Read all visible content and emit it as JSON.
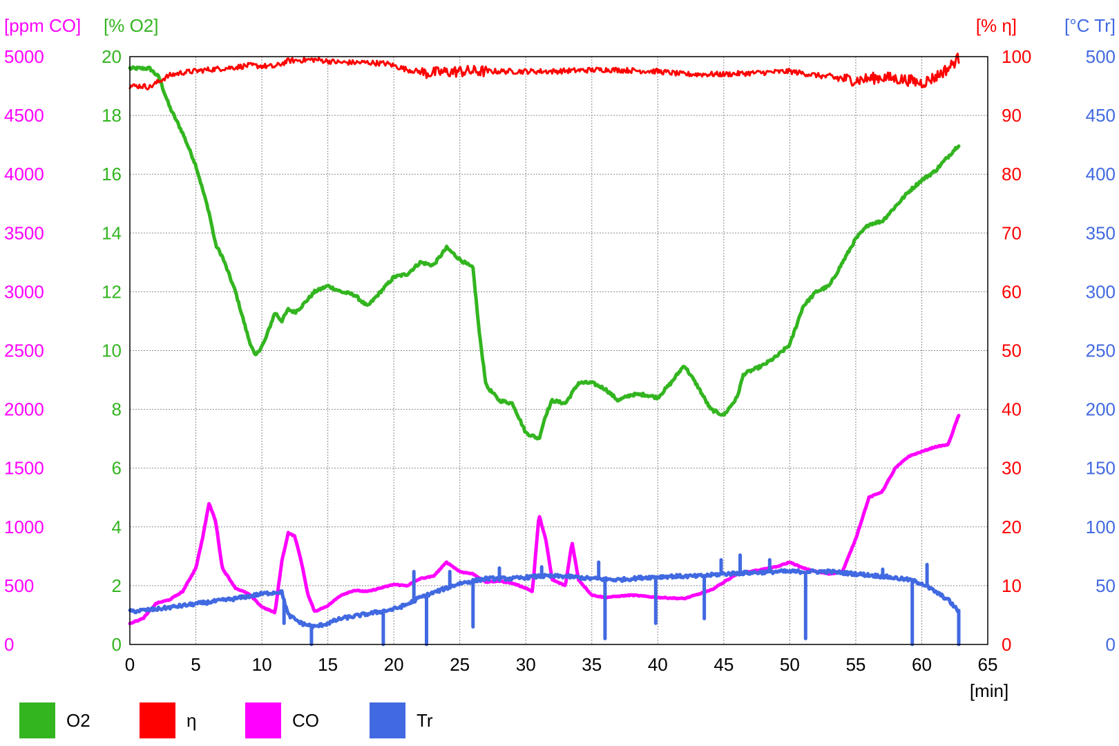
{
  "chart_data": {
    "type": "line",
    "xlabel": "[min]",
    "xlim": [
      0,
      65
    ],
    "x_ticks": [
      "0",
      "5",
      "10",
      "15",
      "20",
      "25",
      "30",
      "35",
      "40",
      "45",
      "50",
      "55",
      "60",
      "65"
    ],
    "grid": true,
    "legend_placement": "bottom-left",
    "axes": {
      "co": {
        "label": "[ppm CO]",
        "color": "#ff00ff",
        "side": "left-outer",
        "range": [
          0,
          5000
        ],
        "ticks": [
          "0",
          "500",
          "1000",
          "1500",
          "2000",
          "2500",
          "3000",
          "3500",
          "4000",
          "4500",
          "5000"
        ]
      },
      "o2": {
        "label": "[% O2]",
        "color": "#33b520",
        "side": "left-inner",
        "range": [
          0,
          20
        ],
        "ticks": [
          "0",
          "2",
          "4",
          "6",
          "8",
          "10",
          "12",
          "14",
          "16",
          "18",
          "20"
        ]
      },
      "eta": {
        "label": "[% η]",
        "color": "#ff0000",
        "side": "right-inner",
        "range": [
          0,
          100
        ],
        "ticks": [
          "0",
          "10",
          "20",
          "30",
          "40",
          "50",
          "60",
          "70",
          "80",
          "90",
          "100"
        ]
      },
      "tr": {
        "label": "[°C Tr]",
        "color": "#4169e1",
        "side": "right-outer",
        "range": [
          0,
          500
        ],
        "ticks": [
          "0",
          "50",
          "100",
          "150",
          "200",
          "250",
          "300",
          "350",
          "400",
          "450",
          "500"
        ]
      }
    },
    "series": [
      {
        "name": "O2",
        "axis": "o2",
        "color": "#33b520",
        "noise": 0.05,
        "points": [
          [
            0,
            19.6
          ],
          [
            1,
            19.6
          ],
          [
            1.5,
            19.6
          ],
          [
            2.2,
            19.3
          ],
          [
            3,
            18.3
          ],
          [
            4,
            17.4
          ],
          [
            5,
            16.3
          ],
          [
            6,
            14.7
          ],
          [
            6.5,
            13.6
          ],
          [
            7,
            13.2
          ],
          [
            8,
            12.0
          ],
          [
            9,
            10.4
          ],
          [
            9.5,
            9.8
          ],
          [
            10.2,
            10.3
          ],
          [
            11,
            11.3
          ],
          [
            11.5,
            11.0
          ],
          [
            12,
            11.4
          ],
          [
            12.5,
            11.3
          ],
          [
            13,
            11.5
          ],
          [
            14,
            12.0
          ],
          [
            15,
            12.2
          ],
          [
            16,
            12.0
          ],
          [
            17,
            11.9
          ],
          [
            18,
            11.5
          ],
          [
            19,
            12.0
          ],
          [
            20,
            12.5
          ],
          [
            21,
            12.6
          ],
          [
            22,
            13.0
          ],
          [
            23,
            12.9
          ],
          [
            24,
            13.5
          ],
          [
            25,
            13.1
          ],
          [
            26,
            12.8
          ],
          [
            26.5,
            10.5
          ],
          [
            27,
            8.8
          ],
          [
            28,
            8.3
          ],
          [
            29,
            8.2
          ],
          [
            30,
            7.2
          ],
          [
            31,
            7.0
          ],
          [
            31.5,
            7.8
          ],
          [
            32,
            8.3
          ],
          [
            33,
            8.2
          ],
          [
            34,
            8.9
          ],
          [
            35,
            8.9
          ],
          [
            36,
            8.7
          ],
          [
            37,
            8.3
          ],
          [
            38,
            8.5
          ],
          [
            39,
            8.5
          ],
          [
            40,
            8.4
          ],
          [
            41,
            8.9
          ],
          [
            42,
            9.5
          ],
          [
            43,
            8.8
          ],
          [
            44,
            8.0
          ],
          [
            45,
            7.8
          ],
          [
            46,
            8.4
          ],
          [
            46.5,
            9.2
          ],
          [
            47,
            9.3
          ],
          [
            48,
            9.5
          ],
          [
            49,
            9.8
          ],
          [
            50,
            10.2
          ],
          [
            51,
            11.5
          ],
          [
            52,
            12.0
          ],
          [
            53,
            12.2
          ],
          [
            54,
            13.0
          ],
          [
            55,
            13.8
          ],
          [
            56,
            14.3
          ],
          [
            57,
            14.4
          ],
          [
            58,
            14.9
          ],
          [
            59,
            15.4
          ],
          [
            60,
            15.8
          ],
          [
            61,
            16.1
          ],
          [
            62,
            16.6
          ],
          [
            62.8,
            17.0
          ]
        ]
      },
      {
        "name": "η",
        "axis": "eta",
        "color": "#ff0000",
        "noise": 0.45,
        "points": [
          [
            0,
            95
          ],
          [
            1,
            95
          ],
          [
            1.5,
            94.8
          ],
          [
            2,
            95.5
          ],
          [
            2.5,
            96.2
          ],
          [
            3,
            96.8
          ],
          [
            4,
            97.3
          ],
          [
            6,
            97.8
          ],
          [
            8,
            98.2
          ],
          [
            9,
            98.5
          ],
          [
            11,
            98.3
          ],
          [
            12,
            99.3
          ],
          [
            14,
            99.5
          ],
          [
            16,
            99.0
          ],
          [
            18,
            99.0
          ],
          [
            19.5,
            98.8
          ],
          [
            21,
            97.8
          ],
          [
            22.5,
            97.2
          ],
          [
            25,
            97.5
          ],
          [
            28,
            97.5
          ],
          [
            32,
            97.5
          ],
          [
            36,
            97.8
          ],
          [
            40,
            97.5
          ],
          [
            42,
            97.0
          ],
          [
            45,
            97.0
          ],
          [
            50,
            97.5
          ],
          [
            53,
            96.5
          ],
          [
            55,
            96.0
          ],
          [
            57,
            96.5
          ],
          [
            59,
            96.0
          ],
          [
            60,
            95.5
          ],
          [
            61,
            96.5
          ],
          [
            62,
            98.0
          ],
          [
            62.8,
            99.8
          ]
        ]
      },
      {
        "name": "CO",
        "axis": "co",
        "color": "#ff00ff",
        "noise": 4,
        "points": [
          [
            0,
            180
          ],
          [
            1,
            220
          ],
          [
            2,
            350
          ],
          [
            3,
            380
          ],
          [
            4,
            450
          ],
          [
            5,
            650
          ],
          [
            5.5,
            900
          ],
          [
            6,
            1200
          ],
          [
            6.5,
            1050
          ],
          [
            7,
            650
          ],
          [
            8,
            480
          ],
          [
            9,
            430
          ],
          [
            10,
            320
          ],
          [
            11,
            270
          ],
          [
            11.5,
            700
          ],
          [
            12,
            950
          ],
          [
            12.5,
            920
          ],
          [
            13,
            700
          ],
          [
            13.5,
            420
          ],
          [
            14,
            280
          ],
          [
            15,
            330
          ],
          [
            16,
            420
          ],
          [
            17,
            460
          ],
          [
            18,
            450
          ],
          [
            19,
            480
          ],
          [
            20,
            510
          ],
          [
            21,
            500
          ],
          [
            22,
            560
          ],
          [
            23,
            580
          ],
          [
            24,
            700
          ],
          [
            25,
            620
          ],
          [
            26,
            600
          ],
          [
            27,
            530
          ],
          [
            28,
            540
          ],
          [
            29,
            520
          ],
          [
            30,
            480
          ],
          [
            30.5,
            450
          ],
          [
            31,
            1100
          ],
          [
            31.5,
            900
          ],
          [
            32,
            550
          ],
          [
            33,
            500
          ],
          [
            33.5,
            870
          ],
          [
            34,
            550
          ],
          [
            35,
            420
          ],
          [
            36,
            400
          ],
          [
            38,
            420
          ],
          [
            40,
            400
          ],
          [
            42,
            390
          ],
          [
            44,
            460
          ],
          [
            46,
            600
          ],
          [
            48,
            640
          ],
          [
            49,
            660
          ],
          [
            50,
            700
          ],
          [
            51,
            650
          ],
          [
            52,
            620
          ],
          [
            53,
            600
          ],
          [
            54,
            620
          ],
          [
            55,
            900
          ],
          [
            56,
            1250
          ],
          [
            57,
            1300
          ],
          [
            58,
            1500
          ],
          [
            59,
            1600
          ],
          [
            60,
            1640
          ],
          [
            61,
            1680
          ],
          [
            62,
            1700
          ],
          [
            62.8,
            1950
          ]
        ]
      },
      {
        "name": "Tr",
        "axis": "tr",
        "color": "#4169e1",
        "noise": 1.5,
        "points": [
          [
            0,
            28
          ],
          [
            2,
            30
          ],
          [
            4,
            33
          ],
          [
            6,
            36
          ],
          [
            8,
            39
          ],
          [
            10,
            43
          ],
          [
            11.5,
            45
          ],
          [
            12,
            25
          ],
          [
            13,
            18
          ],
          [
            14,
            15
          ],
          [
            15,
            18
          ],
          [
            16,
            22
          ],
          [
            17,
            24
          ],
          [
            18,
            26
          ],
          [
            19,
            28
          ],
          [
            20,
            30
          ],
          [
            21,
            34
          ],
          [
            22,
            40
          ],
          [
            23,
            44
          ],
          [
            24,
            48
          ],
          [
            25,
            52
          ],
          [
            27,
            56
          ],
          [
            29,
            56
          ],
          [
            31,
            58
          ],
          [
            33,
            58
          ],
          [
            35,
            56
          ],
          [
            37,
            55
          ],
          [
            39,
            57
          ],
          [
            41,
            58
          ],
          [
            43,
            58
          ],
          [
            45,
            60
          ],
          [
            47,
            61
          ],
          [
            49,
            62
          ],
          [
            51,
            62
          ],
          [
            53,
            62
          ],
          [
            55,
            60
          ],
          [
            57,
            58
          ],
          [
            59,
            55
          ],
          [
            60,
            52
          ],
          [
            61,
            45
          ],
          [
            62,
            38
          ],
          [
            62.8,
            28
          ]
        ],
        "drops": [
          [
            11.7,
            18
          ],
          [
            13.8,
            0
          ],
          [
            19.2,
            0
          ],
          [
            22.5,
            0
          ],
          [
            26,
            15
          ],
          [
            36,
            5
          ],
          [
            39.8,
            18
          ],
          [
            43.5,
            22
          ],
          [
            51.2,
            5
          ],
          [
            59.3,
            0
          ],
          [
            62.8,
            0
          ]
        ],
        "spikes": [
          [
            21.5,
            62
          ],
          [
            24.2,
            62
          ],
          [
            28,
            65
          ],
          [
            31.2,
            66
          ],
          [
            35.5,
            70
          ],
          [
            44.8,
            72
          ],
          [
            46.2,
            76
          ],
          [
            48.5,
            72
          ],
          [
            57,
            64
          ],
          [
            60.4,
            68
          ]
        ]
      }
    ],
    "legend": [
      {
        "name": "O2",
        "color": "#33b520"
      },
      {
        "name": "η",
        "color": "#ff0000"
      },
      {
        "name": "CO",
        "color": "#ff00ff"
      },
      {
        "name": "Tr",
        "color": "#4169e1"
      }
    ]
  }
}
